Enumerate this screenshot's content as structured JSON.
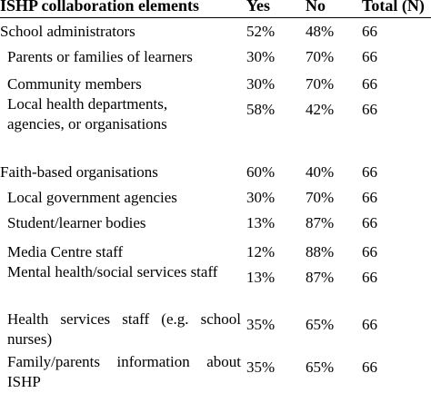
{
  "table": {
    "headers": {
      "element": "ISHP collaboration elements",
      "yes": "Yes",
      "no": "No",
      "total": "Total (N)"
    },
    "rows": [
      {
        "element": "School administrators",
        "yes": "52%",
        "no": "48%",
        "total": "66"
      },
      {
        "element": "Parents or families of learners",
        "yes": "30%",
        "no": "70%",
        "total": "66"
      },
      {
        "element": "Community members",
        "yes": "30%",
        "no": "70%",
        "total": "66"
      },
      {
        "element": "Local health departments, agencies, or organisations",
        "yes": "58%",
        "no": "42%",
        "total": "66"
      },
      {
        "element": "Faith-based organisations",
        "yes": "60%",
        "no": "40%",
        "total": "66"
      },
      {
        "element": "Local government agencies",
        "yes": "30%",
        "no": "70%",
        "total": "66"
      },
      {
        "element": "Student/learner bodies",
        "yes": "13%",
        "no": "87%",
        "total": "66"
      },
      {
        "element": "Media Centre staff",
        "yes": "12%",
        "no": "88%",
        "total": "66"
      },
      {
        "element": "Mental health/social services staff",
        "yes": "13%",
        "no": "87%",
        "total": "66"
      },
      {
        "element": "Health services staff (e.g. school nurses)",
        "yes": "35%",
        "no": "65%",
        "total": "66"
      },
      {
        "element": "Family/parents information about ISHP",
        "yes": "35%",
        "no": "65%",
        "total": "66"
      }
    ]
  }
}
